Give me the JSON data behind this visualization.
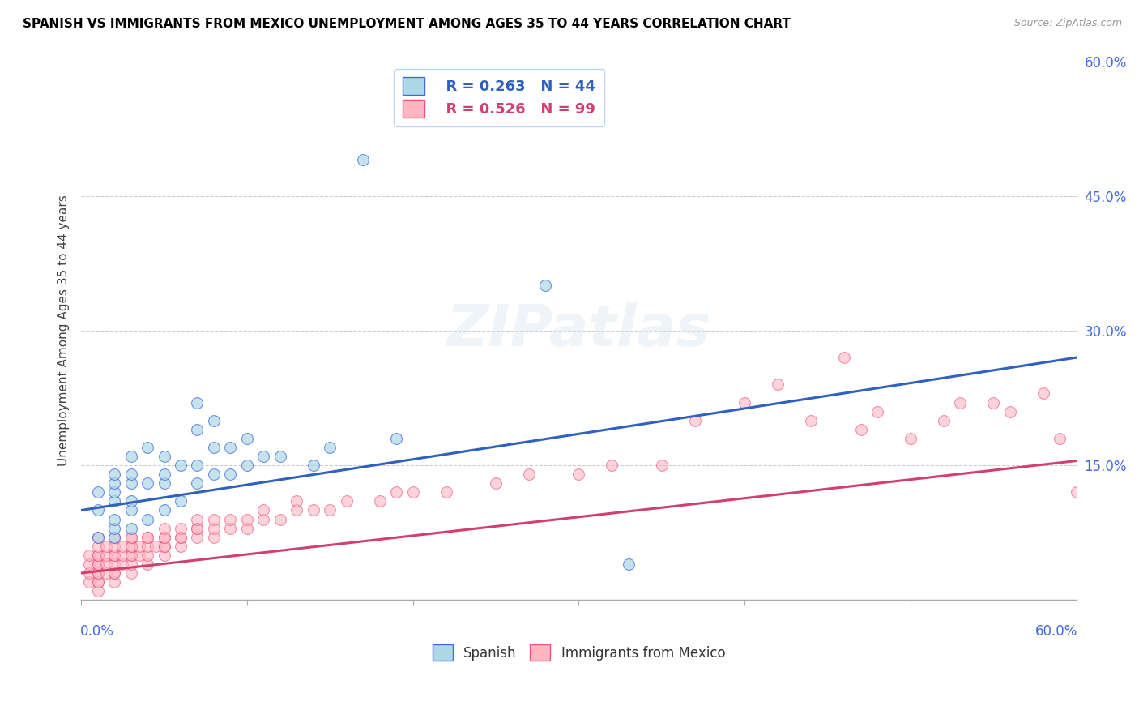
{
  "title": "SPANISH VS IMMIGRANTS FROM MEXICO UNEMPLOYMENT AMONG AGES 35 TO 44 YEARS CORRELATION CHART",
  "source": "Source: ZipAtlas.com",
  "ylabel": "Unemployment Among Ages 35 to 44 years",
  "ytick_labels": [
    "",
    "15.0%",
    "30.0%",
    "45.0%",
    "60.0%"
  ],
  "yticks": [
    0.0,
    0.15,
    0.3,
    0.45,
    0.6
  ],
  "xlim": [
    0.0,
    0.6
  ],
  "ylim": [
    0.0,
    0.6
  ],
  "legend_r1": "R = 0.263",
  "legend_n1": "N = 44",
  "legend_r2": "R = 0.526",
  "legend_n2": "N = 99",
  "color_spanish_fill": "#add8e6",
  "color_spanish_edge": "#4169E1",
  "color_mexico_fill": "#ffb6c1",
  "color_mexico_edge": "#e75480",
  "color_trendline_spanish": "#3060c0",
  "color_trendline_mexico": "#d04070",
  "color_axis_labels": "#4169E1",
  "color_title": "#000000",
  "color_source": "#999999",
  "color_grid": "#cccccc",
  "trendline_spanish_x0": 0.0,
  "trendline_spanish_y0": 0.1,
  "trendline_spanish_x1": 0.6,
  "trendline_spanish_y1": 0.27,
  "trendline_mexico_x0": 0.0,
  "trendline_mexico_y0": 0.03,
  "trendline_mexico_x1": 0.6,
  "trendline_mexico_y1": 0.155,
  "spanish_x": [
    0.01,
    0.01,
    0.01,
    0.02,
    0.02,
    0.02,
    0.02,
    0.02,
    0.02,
    0.02,
    0.03,
    0.03,
    0.03,
    0.03,
    0.03,
    0.03,
    0.04,
    0.04,
    0.04,
    0.05,
    0.05,
    0.05,
    0.05,
    0.06,
    0.06,
    0.07,
    0.07,
    0.07,
    0.07,
    0.08,
    0.08,
    0.08,
    0.09,
    0.09,
    0.1,
    0.1,
    0.11,
    0.12,
    0.14,
    0.15,
    0.17,
    0.19,
    0.28,
    0.33
  ],
  "spanish_y": [
    0.07,
    0.1,
    0.12,
    0.07,
    0.08,
    0.09,
    0.11,
    0.12,
    0.13,
    0.14,
    0.08,
    0.1,
    0.11,
    0.13,
    0.14,
    0.16,
    0.09,
    0.13,
    0.17,
    0.1,
    0.13,
    0.14,
    0.16,
    0.11,
    0.15,
    0.13,
    0.15,
    0.19,
    0.22,
    0.14,
    0.17,
    0.2,
    0.14,
    0.17,
    0.15,
    0.18,
    0.16,
    0.16,
    0.15,
    0.17,
    0.49,
    0.18,
    0.35,
    0.04
  ],
  "mexico_x": [
    0.005,
    0.005,
    0.005,
    0.005,
    0.01,
    0.01,
    0.01,
    0.01,
    0.01,
    0.01,
    0.01,
    0.01,
    0.01,
    0.01,
    0.01,
    0.015,
    0.015,
    0.015,
    0.015,
    0.02,
    0.02,
    0.02,
    0.02,
    0.02,
    0.02,
    0.02,
    0.02,
    0.025,
    0.025,
    0.025,
    0.03,
    0.03,
    0.03,
    0.03,
    0.03,
    0.03,
    0.03,
    0.03,
    0.035,
    0.035,
    0.04,
    0.04,
    0.04,
    0.04,
    0.04,
    0.045,
    0.05,
    0.05,
    0.05,
    0.05,
    0.05,
    0.05,
    0.06,
    0.06,
    0.06,
    0.06,
    0.07,
    0.07,
    0.07,
    0.07,
    0.08,
    0.08,
    0.08,
    0.09,
    0.09,
    0.1,
    0.1,
    0.11,
    0.11,
    0.12,
    0.13,
    0.13,
    0.14,
    0.15,
    0.16,
    0.18,
    0.19,
    0.2,
    0.22,
    0.25,
    0.27,
    0.3,
    0.32,
    0.35,
    0.37,
    0.4,
    0.42,
    0.44,
    0.46,
    0.47,
    0.48,
    0.5,
    0.52,
    0.53,
    0.55,
    0.56,
    0.58,
    0.59,
    0.6
  ],
  "mexico_y": [
    0.02,
    0.03,
    0.04,
    0.05,
    0.01,
    0.02,
    0.02,
    0.03,
    0.03,
    0.04,
    0.04,
    0.05,
    0.05,
    0.06,
    0.07,
    0.03,
    0.04,
    0.05,
    0.06,
    0.02,
    0.03,
    0.03,
    0.04,
    0.05,
    0.05,
    0.06,
    0.07,
    0.04,
    0.05,
    0.06,
    0.03,
    0.04,
    0.05,
    0.05,
    0.06,
    0.06,
    0.07,
    0.07,
    0.05,
    0.06,
    0.04,
    0.05,
    0.06,
    0.07,
    0.07,
    0.06,
    0.05,
    0.06,
    0.06,
    0.07,
    0.07,
    0.08,
    0.06,
    0.07,
    0.07,
    0.08,
    0.07,
    0.08,
    0.08,
    0.09,
    0.07,
    0.08,
    0.09,
    0.08,
    0.09,
    0.08,
    0.09,
    0.09,
    0.1,
    0.09,
    0.1,
    0.11,
    0.1,
    0.1,
    0.11,
    0.11,
    0.12,
    0.12,
    0.12,
    0.13,
    0.14,
    0.14,
    0.15,
    0.15,
    0.2,
    0.22,
    0.24,
    0.2,
    0.27,
    0.19,
    0.21,
    0.18,
    0.2,
    0.22,
    0.22,
    0.21,
    0.23,
    0.18,
    0.12
  ]
}
